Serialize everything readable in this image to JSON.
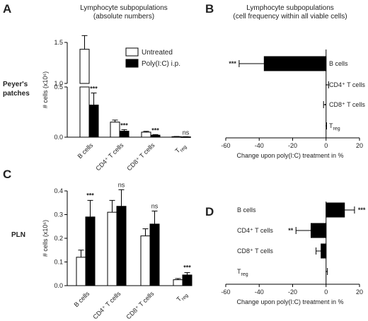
{
  "headers": {
    "left_title": "Lymphocyte subpopulations",
    "left_subtitle": "(absolute numbers)",
    "right_title": "Lymphocyte subpopulations",
    "right_subtitle": "(cell frequency within all viable cells)"
  },
  "row_labels": {
    "top_line1": "Peyer's",
    "top_line2": "patches",
    "bottom": "PLN"
  },
  "legend": {
    "untreated": "Untreated",
    "treated": "Poly(I:C) i.p."
  },
  "colors": {
    "untreated": "#ffffff",
    "treated": "#000000",
    "axis": "#000000"
  },
  "chart_data": [
    {
      "panel": "A",
      "type": "bar",
      "categories": [
        "B cells",
        "CD4⁺ T cells",
        "CD8⁺ T cells",
        "T"
      ],
      "category_subscripts": [
        "",
        "",
        "",
        "reg"
      ],
      "series": [
        {
          "name": "Untreated",
          "values": [
            1.25,
            0.15,
            0.05,
            0.005
          ],
          "errors": [
            0.1,
            0.02,
            0.008,
            0.002
          ]
        },
        {
          "name": "Poly(I:C) i.p.",
          "values": [
            0.32,
            0.06,
            0.02,
            0.003
          ],
          "errors": [
            0.12,
            0.015,
            0.006,
            0.002
          ]
        }
      ],
      "significance": [
        "***",
        "***",
        "***",
        "ns"
      ],
      "ylabel": "# cells (x10⁶)",
      "y_axis_break": true,
      "y_lower_range": [
        0,
        0.5
      ],
      "y_upper_range": [
        1.0,
        1.3
      ],
      "yticks_lower": [
        "0.0",
        "0.5"
      ],
      "yticks_upper": [
        "1.0",
        "1.5"
      ]
    },
    {
      "panel": "B",
      "type": "bar",
      "orientation": "horizontal",
      "categories": [
        "B cells",
        "CD4⁺ T cells",
        "CD8⁺ T cells",
        "T"
      ],
      "category_subscripts": [
        "",
        "",
        "",
        "reg"
      ],
      "values": [
        -37,
        0,
        -0.5,
        0
      ],
      "errors": [
        15,
        1.5,
        1,
        0.3
      ],
      "significance": [
        "***",
        "",
        "",
        ""
      ],
      "xlabel": "Change upon poly(I:C) treatment in %",
      "xlim": [
        -60,
        20
      ],
      "xticks": [
        "-60",
        "-40",
        "-20",
        "0",
        "20"
      ]
    },
    {
      "panel": "C",
      "type": "bar",
      "categories": [
        "B cells",
        "CD4⁺ T cells",
        "CD8⁺ T cells",
        "T"
      ],
      "category_subscripts": [
        "",
        "",
        "",
        "reg"
      ],
      "series": [
        {
          "name": "Untreated",
          "values": [
            0.12,
            0.31,
            0.21,
            0.025
          ],
          "errors": [
            0.03,
            0.05,
            0.03,
            0.005
          ]
        },
        {
          "name": "Poly(I:C) i.p.",
          "values": [
            0.29,
            0.335,
            0.26,
            0.045
          ],
          "errors": [
            0.07,
            0.07,
            0.055,
            0.01
          ]
        }
      ],
      "significance": [
        "***",
        "ns",
        "ns",
        "***"
      ],
      "ylabel": "# cells (x10⁶)",
      "ylim": [
        0,
        0.4
      ],
      "yticks": [
        "0.0",
        "0.1",
        "0.2",
        "0.3",
        "0.4"
      ]
    },
    {
      "panel": "D",
      "type": "bar",
      "orientation": "horizontal",
      "categories": [
        "B cells",
        "CD4⁺ T cells",
        "CD8⁺ T cells",
        "T"
      ],
      "category_subscripts": [
        "",
        "",
        "",
        "reg"
      ],
      "values": [
        11,
        -9,
        -3,
        0.3
      ],
      "errors": [
        6,
        9,
        3,
        0.5
      ],
      "significance": [
        "***",
        "**",
        "",
        ""
      ],
      "xlabel": "Change upon poly(I:C) treatment in %",
      "xlim": [
        -60,
        20
      ],
      "xticks": [
        "-60",
        "-40",
        "-20",
        "0",
        "20"
      ]
    }
  ]
}
